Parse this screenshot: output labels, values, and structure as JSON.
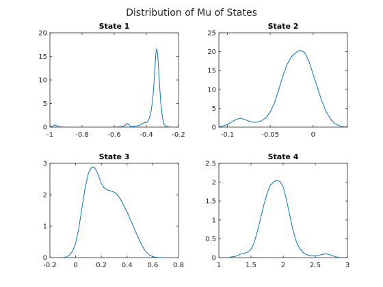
{
  "figure": {
    "title": "Distribution of Mu of States",
    "line_color": "#0072BD"
  },
  "chart_data": [
    {
      "type": "line",
      "title": "State 1",
      "xlim": [
        -1,
        -0.2
      ],
      "ylim": [
        0,
        20
      ],
      "xticks": [
        -1,
        -0.8,
        -0.6,
        -0.4,
        -0.2
      ],
      "xtick_labels": [
        "-1",
        "-0.8",
        "-0.6",
        "-0.4",
        "-0.2"
      ],
      "yticks": [
        0,
        5,
        10,
        15,
        20
      ],
      "ytick_labels": [
        "0",
        "5",
        "10",
        "15",
        "20"
      ],
      "x": [
        -0.995,
        -0.98,
        -0.97,
        -0.96,
        -0.95,
        -0.93,
        -0.9,
        -0.85,
        -0.8,
        -0.7,
        -0.6,
        -0.55,
        -0.53,
        -0.52,
        -0.51,
        -0.5,
        -0.48,
        -0.45,
        -0.42,
        -0.41,
        -0.4,
        -0.39,
        -0.38,
        -0.37,
        -0.36,
        -0.35,
        -0.345,
        -0.34,
        -0.335,
        -0.33,
        -0.325,
        -0.32,
        -0.315,
        -0.31,
        -0.3,
        -0.29,
        -0.28,
        -0.27,
        -0.26,
        -0.25,
        -0.24
      ],
      "y": [
        0.1,
        0.2,
        0.5,
        0.3,
        0.1,
        0.05,
        0,
        0,
        0,
        0,
        0,
        0.1,
        0.4,
        0.8,
        0.6,
        0.2,
        0.15,
        0.3,
        0.8,
        1.0,
        0.9,
        1.3,
        2.0,
        3.5,
        6.0,
        10.5,
        13.5,
        16.0,
        16.6,
        15.5,
        13.0,
        10.0,
        7.5,
        5.0,
        2.0,
        0.6,
        0.2,
        0.1,
        0.05,
        0,
        0
      ]
    },
    {
      "type": "line",
      "title": "State 2",
      "xlim": [
        -0.11,
        0.04
      ],
      "ylim": [
        0,
        25
      ],
      "xticks": [
        -0.1,
        -0.05,
        0
      ],
      "xtick_labels": [
        "-0.1",
        "-0.05",
        "0"
      ],
      "yticks": [
        0,
        5,
        10,
        15,
        20,
        25
      ],
      "ytick_labels": [
        "0",
        "5",
        "10",
        "15",
        "20",
        "25"
      ],
      "x": [
        -0.11,
        -0.105,
        -0.1,
        -0.095,
        -0.09,
        -0.085,
        -0.08,
        -0.075,
        -0.07,
        -0.065,
        -0.06,
        -0.055,
        -0.05,
        -0.045,
        -0.04,
        -0.035,
        -0.03,
        -0.025,
        -0.02,
        -0.015,
        -0.01,
        -0.005,
        0,
        0.005,
        0.01,
        0.015,
        0.02,
        0.025,
        0.03,
        0.035,
        0.04
      ],
      "y": [
        0.1,
        0.3,
        0.7,
        1.4,
        2.0,
        2.4,
        2.0,
        1.6,
        1.3,
        1.3,
        1.7,
        2.5,
        4.0,
        6.5,
        10.0,
        13.8,
        16.8,
        18.8,
        19.8,
        20.4,
        19.8,
        17.5,
        14.0,
        10.5,
        7.0,
        4.2,
        2.2,
        1.0,
        0.4,
        0.1,
        0.05
      ]
    },
    {
      "type": "line",
      "title": "State 3",
      "xlim": [
        -0.2,
        0.8
      ],
      "ylim": [
        0,
        3
      ],
      "xticks": [
        -0.2,
        0,
        0.2,
        0.4,
        0.6,
        0.8
      ],
      "xtick_labels": [
        "-0.2",
        "0",
        "0.2",
        "0.4",
        "0.6",
        "0.8"
      ],
      "yticks": [
        0,
        1,
        2,
        3
      ],
      "ytick_labels": [
        "0",
        "1",
        "2",
        "3"
      ],
      "x": [
        -0.1,
        -0.075,
        -0.05,
        -0.025,
        0,
        0.025,
        0.05,
        0.075,
        0.1,
        0.125,
        0.15,
        0.175,
        0.2,
        0.225,
        0.25,
        0.275,
        0.3,
        0.325,
        0.35,
        0.375,
        0.4,
        0.425,
        0.45,
        0.475,
        0.5,
        0.525,
        0.55,
        0.575,
        0.6,
        0.625,
        0.65,
        0.675,
        0.7
      ],
      "y": [
        0,
        0.02,
        0.07,
        0.2,
        0.45,
        0.95,
        1.6,
        2.25,
        2.7,
        2.88,
        2.85,
        2.65,
        2.35,
        2.2,
        2.15,
        2.12,
        2.08,
        2.0,
        1.85,
        1.65,
        1.45,
        1.22,
        0.98,
        0.75,
        0.52,
        0.32,
        0.17,
        0.08,
        0.03,
        0.01,
        0,
        0,
        0
      ]
    },
    {
      "type": "line",
      "title": "State 4",
      "xlim": [
        1,
        3
      ],
      "ylim": [
        0,
        2.5
      ],
      "xticks": [
        1,
        1.5,
        2,
        2.5,
        3
      ],
      "xtick_labels": [
        "1",
        "1.5",
        "2",
        "2.5",
        "3"
      ],
      "yticks": [
        0,
        0.5,
        1,
        1.5,
        2,
        2.5
      ],
      "ytick_labels": [
        "0",
        "0.5",
        "1",
        "1.5",
        "2",
        "2.5"
      ],
      "x": [
        1.15,
        1.2,
        1.25,
        1.3,
        1.35,
        1.4,
        1.45,
        1.5,
        1.55,
        1.6,
        1.65,
        1.7,
        1.75,
        1.8,
        1.85,
        1.9,
        1.95,
        2.0,
        2.05,
        2.1,
        2.15,
        2.2,
        2.25,
        2.3,
        2.35,
        2.4,
        2.45,
        2.5,
        2.55,
        2.6,
        2.65,
        2.7,
        2.75,
        2.8,
        2.85,
        2.9
      ],
      "y": [
        0.0,
        0.02,
        0.03,
        0.06,
        0.1,
        0.12,
        0.15,
        0.22,
        0.4,
        0.7,
        1.05,
        1.4,
        1.7,
        1.92,
        2.0,
        2.05,
        2.02,
        1.88,
        1.55,
        1.15,
        0.75,
        0.45,
        0.26,
        0.15,
        0.09,
        0.06,
        0.05,
        0.05,
        0.06,
        0.08,
        0.1,
        0.09,
        0.06,
        0.03,
        0.01,
        0.0
      ]
    }
  ]
}
